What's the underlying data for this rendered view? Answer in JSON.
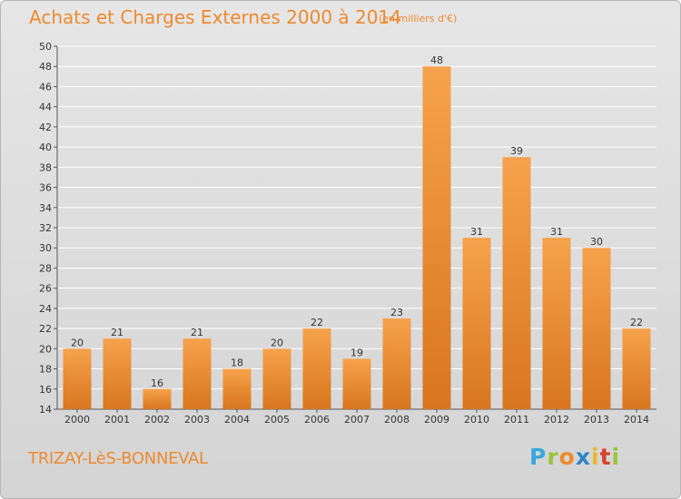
{
  "header": {
    "title": "Achats et Charges Externes 2000 à 2014",
    "subtitle": "(en milliers d'€)"
  },
  "footer": {
    "town": "TRIZAY-LèS-BONNEVAL",
    "logo_letters": [
      "P",
      "r",
      "o",
      "x",
      "i",
      "t",
      "i"
    ]
  },
  "colors": {
    "bar_light": "#f6a24c",
    "bar_dark": "#d8761e",
    "title": "#ed8a2e",
    "grid": "#ffffff"
  },
  "chart_data": {
    "type": "bar",
    "title": "Achats et Charges Externes 2000 à 2014",
    "subtitle": "(en milliers d'€)",
    "xlabel": "",
    "ylabel": "",
    "categories": [
      "2000",
      "2001",
      "2002",
      "2003",
      "2004",
      "2005",
      "2006",
      "2007",
      "2008",
      "2009",
      "2010",
      "2011",
      "2012",
      "2013",
      "2014"
    ],
    "values": [
      20,
      21,
      16,
      21,
      18,
      20,
      22,
      19,
      23,
      48,
      31,
      39,
      31,
      30,
      22
    ],
    "ylim": [
      14,
      50
    ],
    "yticks": [
      14,
      16,
      18,
      20,
      22,
      24,
      26,
      28,
      30,
      32,
      34,
      36,
      38,
      40,
      42,
      44,
      46,
      48,
      50
    ],
    "grid": true,
    "data_labels": true
  }
}
